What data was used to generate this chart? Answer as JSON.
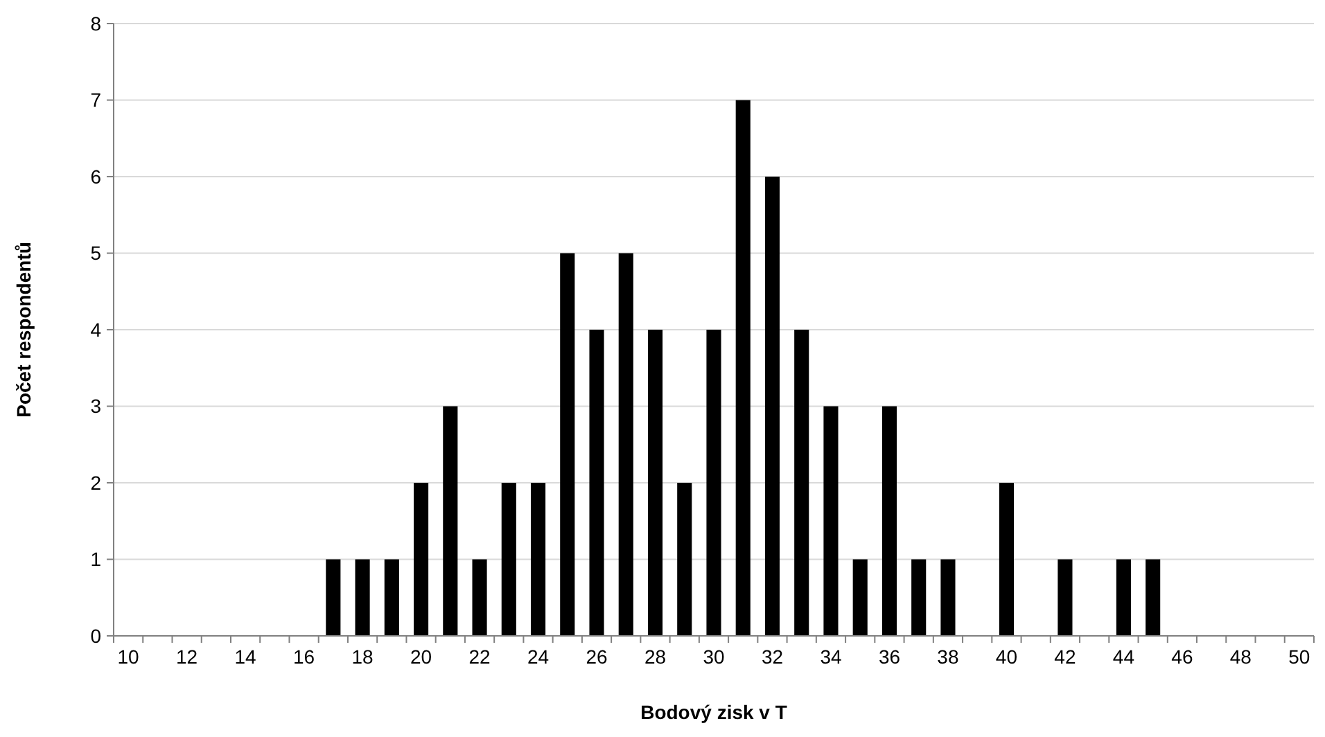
{
  "chart_data": {
    "type": "bar",
    "xlabel": "Bodový zisk v T",
    "ylabel": "Počet respondentů",
    "categories": [
      "10",
      null,
      "12",
      null,
      "14",
      null,
      "16",
      null,
      "18",
      null,
      "20",
      null,
      "22",
      null,
      "24",
      null,
      "26",
      null,
      "28",
      null,
      "30",
      null,
      "32",
      null,
      "34",
      null,
      "36",
      null,
      "38",
      null,
      "40",
      null,
      "42",
      null,
      "44",
      null,
      "46",
      null,
      "48",
      null,
      "50"
    ],
    "values": [
      0,
      0,
      0,
      0,
      0,
      0,
      0,
      1,
      1,
      1,
      2,
      3,
      1,
      2,
      2,
      5,
      4,
      5,
      4,
      2,
      4,
      7,
      6,
      4,
      3,
      1,
      3,
      1,
      1,
      0,
      2,
      0,
      1,
      0,
      1,
      1,
      0,
      0,
      0,
      0,
      0
    ],
    "color": "#000000",
    "ylim": [
      0,
      8
    ],
    "yticks": [
      0,
      1,
      2,
      3,
      4,
      5,
      6,
      7,
      8
    ],
    "grid": "y"
  }
}
